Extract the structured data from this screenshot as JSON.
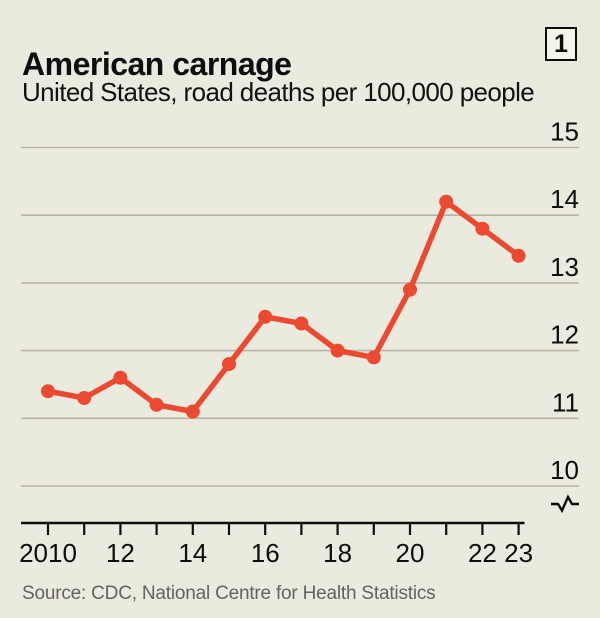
{
  "header": {
    "title": "American carnage",
    "index_label": "1",
    "subtitle": "United States, road deaths per 100,000 people"
  },
  "source_line": "Source: CDC, National Centre for Health Statistics",
  "colors": {
    "background": "#EBEADF",
    "accent_bar_red": "#E3120B",
    "line_red": "#EB4A31",
    "grid_gray": "#B7B5AA",
    "axis_black": "#0D0D0D",
    "text_dark": "#121212",
    "source_gray": "#64635C"
  },
  "chart_data": {
    "type": "line",
    "title": "American carnage",
    "subtitle": "United States, road deaths per 100,000 people",
    "x": [
      2010,
      2011,
      2012,
      2013,
      2014,
      2015,
      2016,
      2017,
      2018,
      2019,
      2020,
      2021,
      2022,
      2023
    ],
    "series": [
      {
        "name": "Road deaths per 100,000 people",
        "values": [
          11.4,
          11.3,
          11.6,
          11.2,
          11.1,
          11.8,
          12.5,
          12.4,
          12.0,
          11.9,
          12.9,
          14.2,
          13.8,
          13.4
        ]
      }
    ],
    "ylim": [
      10,
      15
    ],
    "yticks": [
      10,
      11,
      12,
      13,
      14,
      15
    ],
    "xtick_labels": [
      "2010",
      "",
      "12",
      "",
      "14",
      "",
      "16",
      "",
      "18",
      "",
      "20",
      "",
      "22",
      "23"
    ],
    "grid": true,
    "y_axis_side": "right",
    "axis_break_symbol": true,
    "markers": true,
    "legend": "none"
  }
}
